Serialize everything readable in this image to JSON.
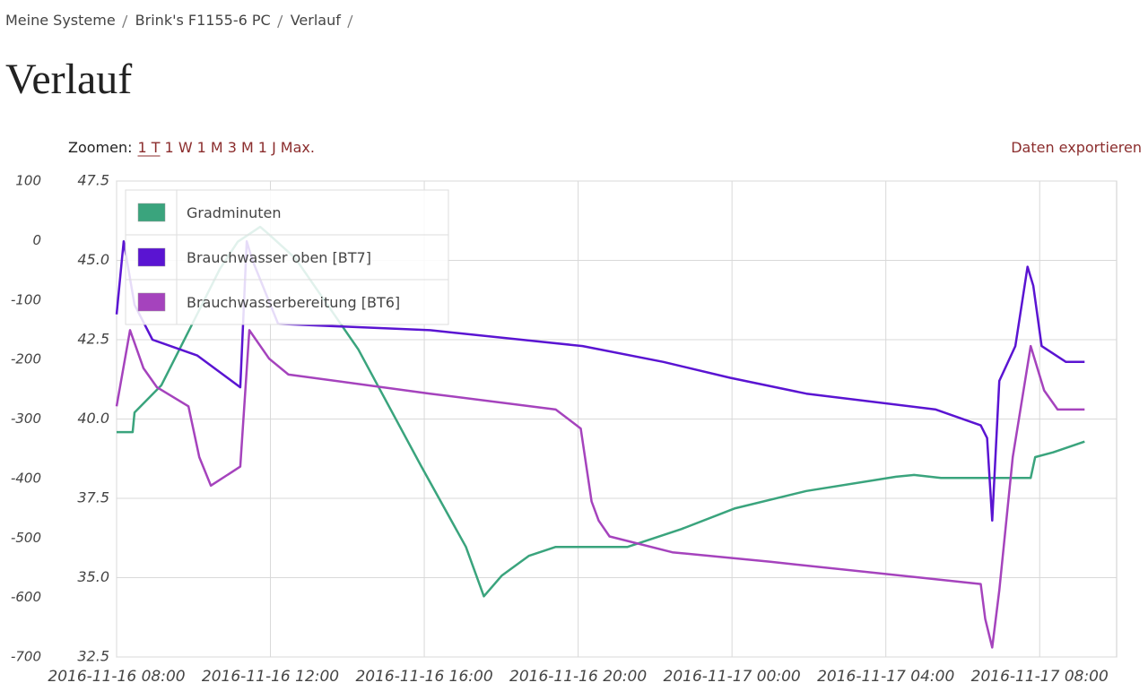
{
  "breadcrumb": [
    "Meine Systeme",
    "Brink's F1155-6 PC",
    "Verlauf"
  ],
  "title": "Verlauf",
  "zoom": {
    "label": "Zoomen:",
    "options": [
      "1 T",
      "1 W",
      "1 M",
      "3 M",
      "1 J",
      "Max."
    ]
  },
  "export": "Daten exportieren",
  "chart_data": {
    "type": "line",
    "xlim": [
      "2016-11-16 08:00",
      "2016-11-17 10:00"
    ],
    "xticks": [
      "2016-11-16 08:00",
      "2016-11-16 12:00",
      "2016-11-16 16:00",
      "2016-11-16 20:00",
      "2016-11-17 00:00",
      "2016-11-17 04:00",
      "2016-11-17 08:00"
    ],
    "ylim": [
      32.5,
      47.5
    ],
    "yticks": [
      32.5,
      {
        "value": 35,
        "label": "35.0"
      },
      37.5,
      {
        "value": 40,
        "label": "40.0"
      },
      42.5,
      {
        "value": 45,
        "label": "45.0"
      },
      47.5
    ],
    "y2lim": [
      -700,
      100
    ],
    "y2ticks": [
      -700,
      -600,
      -500,
      -400,
      -300,
      -200,
      -100,
      0,
      100
    ],
    "grid": true,
    "legend": "top-left",
    "series": [
      {
        "name": "Gradminuten",
        "color": "#3aa47d",
        "axis": "y2",
        "x": [
          "2016-11-16 08:00",
          "2016-11-16 08:25",
          "2016-11-16 08:28",
          "2016-11-16 09:10",
          "2016-11-16 09:59",
          "2016-11-16 10:41",
          "2016-11-16 11:09",
          "2016-11-16 11:44",
          "2016-11-16 11:58",
          "2016-11-16 12:39",
          "2016-11-16 14:17",
          "2016-11-16 15:55",
          "2016-11-16 17:05",
          "2016-11-16 17:33",
          "2016-11-16 18:01",
          "2016-11-16 18:43",
          "2016-11-16 19:25",
          "2016-11-16 21:17",
          "2016-11-16 22:41",
          "2016-11-17 00:05",
          "2016-11-17 01:56",
          "2016-11-17 04:16",
          "2016-11-17 04:44",
          "2016-11-17 05:26",
          "2016-11-17 07:46",
          "2016-11-17 07:53",
          "2016-11-17 08:21",
          "2016-11-17 09:10"
        ],
        "values": [
          -322,
          -322,
          -289,
          -243,
          -138,
          -48,
          -2,
          23,
          10,
          -30,
          -183,
          -379,
          -515,
          -598,
          -563,
          -530,
          -515,
          -515,
          -485,
          -450,
          -421,
          -397,
          -394,
          -399,
          -399,
          -364,
          -356,
          -338
        ]
      },
      {
        "name": "Brauchwasser oben [BT7]",
        "color": "#5a14d2",
        "x": [
          "2016-11-16 08:00",
          "2016-11-16 08:11",
          "2016-11-16 08:28",
          "2016-11-16 08:56",
          "2016-11-16 10:06",
          "2016-11-16 11:13",
          "2016-11-16 11:23",
          "2016-11-16 11:32",
          "2016-11-16 12:12",
          "2016-11-16 16:09",
          "2016-11-16 20:07",
          "2016-11-16 22:13",
          "2016-11-16 23:57",
          "2016-11-17 01:56",
          "2016-11-17 05:18",
          "2016-11-17 06:28",
          "2016-11-17 06:38",
          "2016-11-17 06:46",
          "2016-11-17 06:57",
          "2016-11-17 07:22",
          "2016-11-17 07:41",
          "2016-11-17 07:50",
          "2016-11-17 08:03",
          "2016-11-17 08:41",
          "2016-11-17 09:10"
        ],
        "values": [
          43.3,
          45.6,
          43.6,
          42.5,
          42.0,
          41.0,
          45.6,
          45.0,
          43.0,
          42.8,
          42.3,
          41.8,
          41.3,
          40.8,
          40.3,
          39.8,
          39.4,
          36.8,
          41.2,
          42.3,
          44.8,
          44.2,
          42.3,
          41.8,
          41.8
        ]
      },
      {
        "name": "Brauchwasserbereitung [BT6]",
        "color": "#a543bd",
        "x": [
          "2016-11-16 08:00",
          "2016-11-16 08:21",
          "2016-11-16 08:42",
          "2016-11-16 09:03",
          "2016-11-16 09:52",
          "2016-11-16 10:09",
          "2016-11-16 10:27",
          "2016-11-16 11:13",
          "2016-11-16 11:27",
          "2016-11-16 11:58",
          "2016-11-16 12:28",
          "2016-11-16 16:09",
          "2016-11-16 19:25",
          "2016-11-16 20:04",
          "2016-11-16 20:21",
          "2016-11-16 20:32",
          "2016-11-16 20:49",
          "2016-11-16 22:27",
          "2016-11-17 01:00",
          "2016-11-17 06:28",
          "2016-11-17 06:35",
          "2016-11-17 06:46",
          "2016-11-17 06:57",
          "2016-11-17 07:18",
          "2016-11-17 07:46",
          "2016-11-17 08:07",
          "2016-11-17 08:28",
          "2016-11-17 09:10"
        ],
        "values": [
          40.4,
          42.8,
          41.6,
          41.0,
          40.4,
          38.8,
          37.9,
          38.5,
          42.8,
          41.9,
          41.4,
          40.8,
          40.3,
          39.7,
          37.4,
          36.8,
          36.3,
          35.8,
          35.5,
          34.8,
          33.7,
          32.8,
          34.6,
          38.8,
          42.3,
          40.9,
          40.3,
          40.3
        ]
      }
    ]
  }
}
